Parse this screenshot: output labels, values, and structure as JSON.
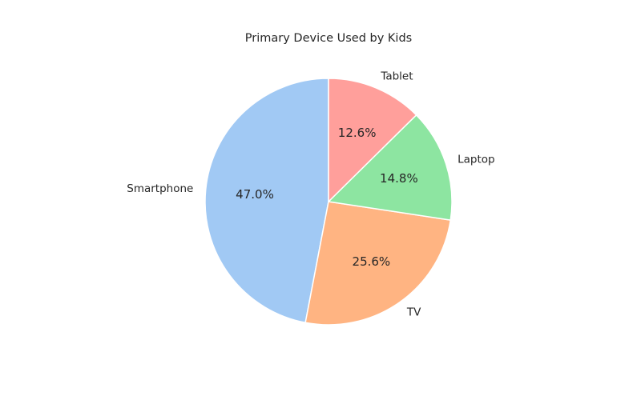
{
  "chart_data": {
    "type": "pie",
    "title": "Primary Device Used by Kids",
    "categories": [
      "Smartphone",
      "TV",
      "Laptop",
      "Tablet"
    ],
    "values": [
      47.0,
      25.6,
      14.8,
      12.6
    ],
    "percent_labels": [
      "47.0%",
      "25.6%",
      "14.8%",
      "12.6%"
    ],
    "colors": [
      "#a1c9f4",
      "#ffb482",
      "#8de5a1",
      "#ff9f9b"
    ],
    "start_angle_deg": 90,
    "direction": "counterclockwise",
    "legend": "none",
    "grid": false
  }
}
